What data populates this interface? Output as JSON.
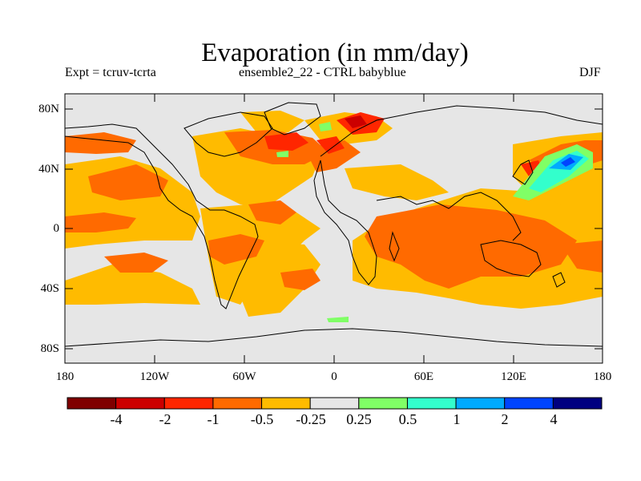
{
  "title": "Evaporation (in mm/day)",
  "experiment_label": "Expt = tcruv-tcrta",
  "ensemble_label": "ensemble2_22 - CTRL babyblue",
  "season_label": "DJF",
  "lat_ticks": [
    "80N",
    "40N",
    "0",
    "40S",
    "80S"
  ],
  "lon_ticks": [
    "180",
    "120W",
    "60W",
    "0",
    "60E",
    "120E",
    "180"
  ],
  "colorbar": {
    "tick_labels": [
      "-4",
      "-2",
      "-1",
      "-0.5",
      "-0.25",
      "0.25",
      "0.5",
      "1",
      "2",
      "4"
    ],
    "colors": [
      "#7f0000",
      "#cc0000",
      "#ff2600",
      "#ff6a00",
      "#ffbb00",
      "#e6e6e6",
      "#80ff66",
      "#33ffcc",
      "#00aaff",
      "#0044ff",
      "#000080"
    ]
  },
  "colors": {
    "background_fill": "#e6e6e6",
    "coastline": "#000000"
  }
}
